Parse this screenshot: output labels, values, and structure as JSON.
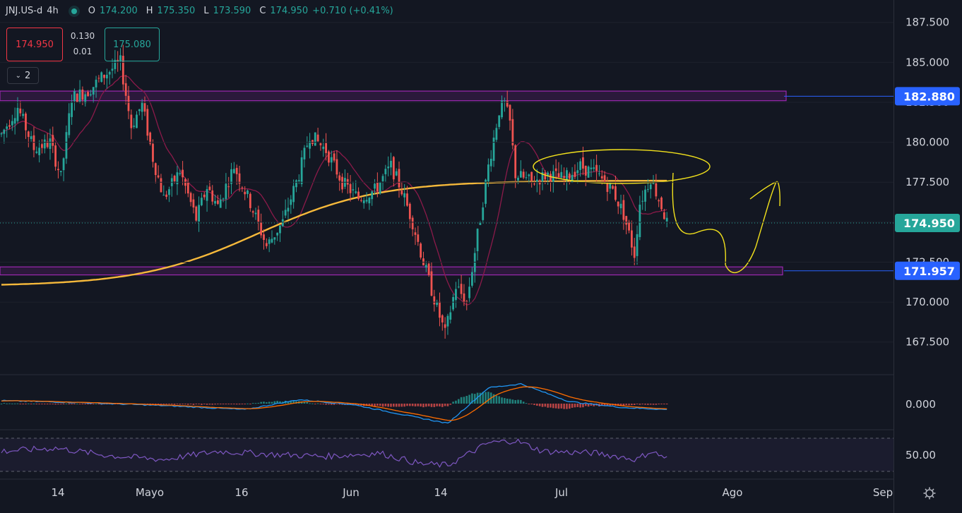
{
  "header": {
    "symbol": "JNJ.US-d",
    "timeframe": "4h",
    "open_label": "O",
    "open": "174.200",
    "high_label": "H",
    "high": "175.350",
    "low_label": "L",
    "low": "173.590",
    "close_label": "C",
    "close": "174.950",
    "change": "+0.710 (+0.41%)"
  },
  "trade": {
    "bid": "174.950",
    "spread_top": "0.130",
    "spread_bottom": "0.01",
    "ask": "175.080",
    "indicators_toggle": "2"
  },
  "colors": {
    "background": "#131722",
    "up": "#26a69a",
    "down": "#ef5350",
    "ma_fast": "#8b1a4a",
    "ma_slow": "#f6b93b",
    "zone": "#9c27b0",
    "hline": "#2962ff",
    "drawing": "#f2e11c",
    "macd": "#2196f3",
    "signal": "#ff6d00",
    "rsi": "#7e57c2"
  },
  "chart_data": {
    "type": "candlestick",
    "price_axis": {
      "ticks": [
        "187.500",
        "185.000",
        "182.500",
        "180.000",
        "177.500",
        "175.000",
        "172.500",
        "170.000",
        "167.500"
      ],
      "range": [
        165.5,
        188.9
      ]
    },
    "time_axis": {
      "labels": [
        "14",
        "Mayo",
        "16",
        "Jun",
        "14",
        "Jul",
        "Ago",
        "Sep"
      ]
    },
    "price_labels": {
      "resistance": "182.880",
      "current": "174.950",
      "support": "171.957"
    },
    "zones": [
      {
        "name": "resistance",
        "from": 182.6,
        "to": 183.2
      },
      {
        "name": "support",
        "from": 171.7,
        "to": 172.2
      }
    ],
    "waypoints": [
      [
        0,
        180.5
      ],
      [
        6,
        182.2
      ],
      [
        12,
        179.6
      ],
      [
        18,
        180.0
      ],
      [
        22,
        177.8
      ],
      [
        26,
        182.8
      ],
      [
        32,
        183.2
      ],
      [
        38,
        184.2
      ],
      [
        44,
        185.0
      ],
      [
        48,
        181.0
      ],
      [
        52,
        182.4
      ],
      [
        56,
        179.0
      ],
      [
        60,
        176.5
      ],
      [
        66,
        178.2
      ],
      [
        72,
        175.2
      ],
      [
        76,
        177.2
      ],
      [
        80,
        176.0
      ],
      [
        86,
        178.5
      ],
      [
        92,
        176.2
      ],
      [
        98,
        173.5
      ],
      [
        104,
        175.0
      ],
      [
        110,
        178.0
      ],
      [
        114,
        180.5
      ],
      [
        120,
        179.5
      ],
      [
        126,
        177.5
      ],
      [
        132,
        176.5
      ],
      [
        138,
        177.0
      ],
      [
        144,
        178.5
      ],
      [
        148,
        177.0
      ],
      [
        152,
        175.0
      ],
      [
        156,
        172.5
      ],
      [
        160,
        170.2
      ],
      [
        164,
        168.0
      ],
      [
        168,
        171.0
      ],
      [
        172,
        170.0
      ],
      [
        176,
        174.2
      ],
      [
        180,
        178.5
      ],
      [
        184,
        182.0
      ],
      [
        186,
        182.4
      ],
      [
        188,
        181.2
      ],
      [
        190,
        178.0
      ],
      [
        196,
        177.5
      ],
      [
        202,
        178.0
      ],
      [
        208,
        177.7
      ],
      [
        214,
        178.5
      ],
      [
        220,
        178.0
      ],
      [
        226,
        177.0
      ],
      [
        230,
        175.5
      ],
      [
        234,
        173.0
      ],
      [
        236,
        176.2
      ],
      [
        240,
        177.8
      ],
      [
        244,
        176.0
      ],
      [
        246,
        174.95
      ]
    ],
    "macd": {
      "axis_tick": "0.000",
      "waypoints": [
        [
          0,
          0.15
        ],
        [
          30,
          0.05
        ],
        [
          60,
          -0.1
        ],
        [
          90,
          -0.3
        ],
        [
          110,
          0.2
        ],
        [
          130,
          -0.05
        ],
        [
          150,
          -0.6
        ],
        [
          165,
          -1.0
        ],
        [
          180,
          0.8
        ],
        [
          192,
          1.0
        ],
        [
          210,
          0.1
        ],
        [
          230,
          -0.2
        ],
        [
          246,
          -0.3
        ]
      ]
    },
    "rsi": {
      "axis_tick": "50.00",
      "waypoints": [
        [
          0,
          55
        ],
        [
          20,
          60
        ],
        [
          40,
          48
        ],
        [
          60,
          42
        ],
        [
          80,
          55
        ],
        [
          100,
          50
        ],
        [
          120,
          47
        ],
        [
          140,
          52
        ],
        [
          155,
          35
        ],
        [
          165,
          33
        ],
        [
          180,
          68
        ],
        [
          190,
          72
        ],
        [
          200,
          55
        ],
        [
          220,
          52
        ],
        [
          235,
          42
        ],
        [
          240,
          55
        ],
        [
          246,
          44
        ]
      ]
    }
  }
}
